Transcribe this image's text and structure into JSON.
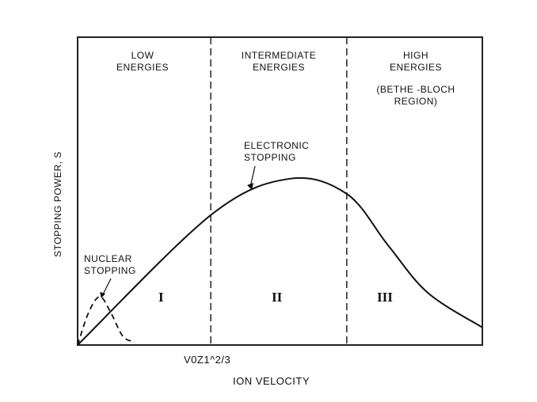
{
  "chart_data": {
    "type": "line",
    "title": "",
    "xlabel": "ION VELOCITY",
    "ylabel": "STOPPING POWER, S",
    "xlim": [
      0,
      100
    ],
    "ylim": [
      0,
      100
    ],
    "x_tick_label": "V0Z1^2/3",
    "x_tick_value": 32.9,
    "region_boundaries": [
      32.9,
      66.5
    ],
    "regions": [
      {
        "numeral": "I",
        "title_line1": "LOW",
        "title_line2": "ENERGIES",
        "note_line1": "",
        "note_line2": ""
      },
      {
        "numeral": "II",
        "title_line1": "INTERMEDIATE",
        "title_line2": "ENERGIES",
        "note_line1": "",
        "note_line2": ""
      },
      {
        "numeral": "III",
        "title_line1": "HIGH",
        "title_line2": "ENERGIES",
        "note_line1": "(BETHE -BLOCH",
        "note_line2": "REGION)"
      }
    ],
    "series": [
      {
        "name": "ELECTRONIC STOPPING",
        "label_line1": "ELECTRONIC",
        "label_line2": "STOPPING",
        "style": "solid",
        "x": [
          0,
          32.9,
          52.3,
          66.5,
          76.7,
          86.5,
          100
        ],
        "y": [
          0,
          42.2,
          54,
          49.1,
          32.4,
          17,
          5.7
        ]
      },
      {
        "name": "NUCLEAR STOPPING",
        "label_line1": "NUCLEAR",
        "label_line2": "STOPPING",
        "style": "dashed",
        "x": [
          0,
          2.7,
          5.5,
          8.2,
          11.2,
          14.1
        ],
        "y": [
          0,
          10.5,
          15.7,
          10.5,
          2.8,
          1
        ]
      }
    ],
    "tick_parts": {
      "v": "V",
      "sub0": "O",
      "z": "Z",
      "sub1": "1",
      "sup": "2/3"
    }
  }
}
